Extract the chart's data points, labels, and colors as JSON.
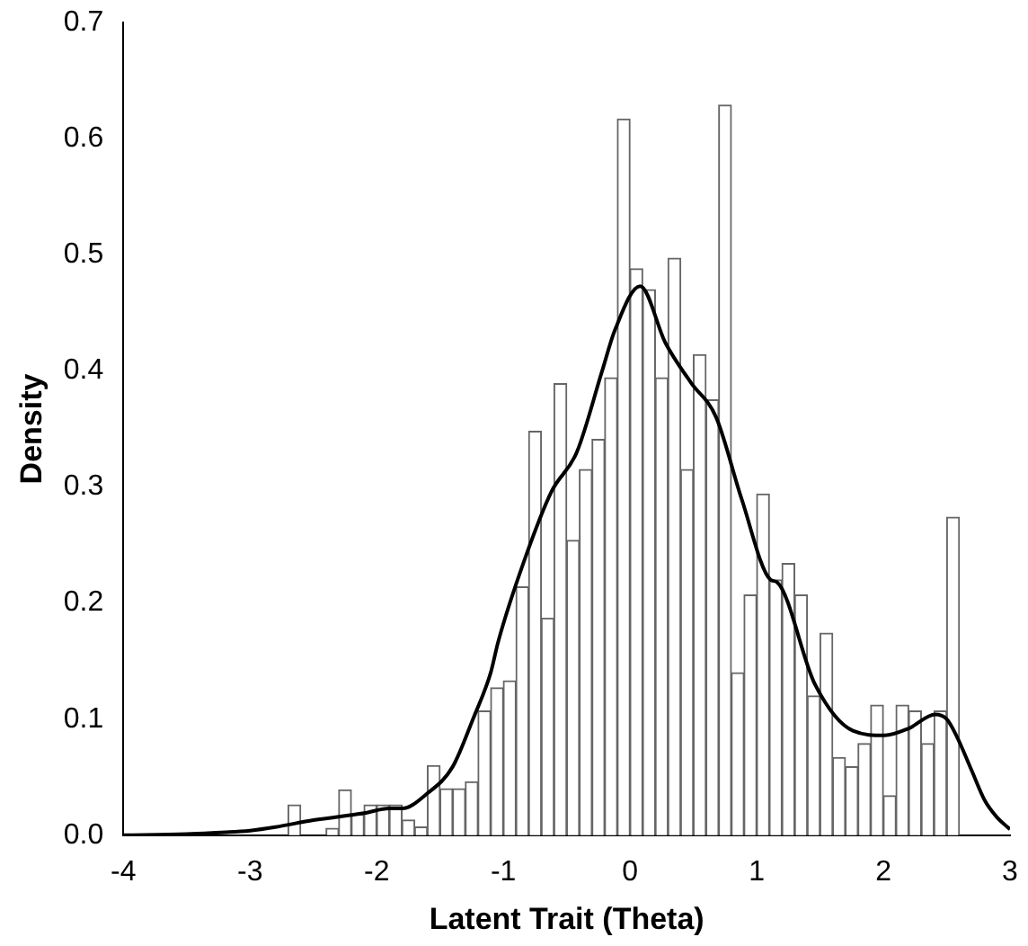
{
  "chart_data": {
    "type": "histogram",
    "xlabel": "Latent Trait (Theta)",
    "ylabel": "Density",
    "bins": [
      -2.7,
      -2.6,
      -2.5,
      -2.4,
      -2.3,
      -2.2,
      -2.1,
      -2.0,
      -1.9,
      -1.8,
      -1.7,
      -1.6,
      -1.5,
      -1.4,
      -1.3,
      -1.2,
      -1.1,
      -1.0,
      -0.9,
      -0.8,
      -0.7,
      -0.6,
      -0.5,
      -0.4,
      -0.3,
      -0.2,
      -0.1,
      0.0,
      0.1,
      0.2,
      0.3,
      0.4,
      0.5,
      0.6,
      0.7,
      0.8,
      0.9,
      1.0,
      1.1,
      1.2,
      1.3,
      1.4,
      1.5,
      1.6,
      1.7,
      1.8,
      1.9,
      2.0,
      2.1,
      2.2,
      2.3,
      2.4,
      2.5,
      2.6
    ],
    "values": [
      0.026,
      0,
      0,
      0.006,
      0.039,
      0.018,
      0.026,
      0.026,
      0.026,
      0.013,
      0.007,
      0.06,
      0.04,
      0.04,
      0.046,
      0.107,
      0.127,
      0.133,
      0.214,
      0.348,
      0.187,
      0.389,
      0.254,
      0.315,
      0.341,
      0.394,
      0.617,
      0.488,
      0.47,
      0.394,
      0.497,
      0.315,
      0.414,
      0.375,
      0.629,
      0.14,
      0.207,
      0.294,
      0.22,
      0.234,
      0.207,
      0.12,
      0.174,
      0.067,
      0.059,
      0.079,
      0.112,
      0.034,
      0.112,
      0.107,
      0.079,
      0.107,
      0.274
    ],
    "color": "#ffffff",
    "series": [
      {
        "type": "line",
        "color": "#000000",
        "x": [
          -4,
          -3.5,
          -3.3,
          -3.0,
          -2.8,
          -2.5,
          -2.1,
          -1.9,
          -1.8,
          -1.6,
          -1.4,
          -1.24,
          -1.1,
          -1.04,
          -0.84,
          -0.62,
          -0.42,
          -0.22,
          -0.12,
          0.08,
          0.28,
          0.48,
          0.68,
          0.88,
          1.11,
          1.16,
          1.46,
          1.76,
          2.01,
          2.2,
          2.41,
          2.5,
          2.58,
          2.7,
          2.8,
          2.9,
          2.98,
          3.0
        ],
        "values": [
          0,
          0.001,
          0.002,
          0.004,
          0.007,
          0.013,
          0.019,
          0.023,
          0.023,
          0.036,
          0.059,
          0.1,
          0.14,
          0.167,
          0.235,
          0.296,
          0.33,
          0.4,
          0.435,
          0.473,
          0.424,
          0.39,
          0.36,
          0.29,
          0.22,
          0.218,
          0.13,
          0.09,
          0.086,
          0.092,
          0.104,
          0.1,
          0.085,
          0.055,
          0.03,
          0.015,
          0.007,
          0.005
        ]
      }
    ],
    "xlim": [
      -4,
      3
    ],
    "xticks": [
      -4,
      -3,
      -2,
      -1,
      0,
      1,
      2,
      3
    ],
    "ylim": [
      0,
      0.7
    ],
    "yticks": [
      {
        "value": 0,
        "label": "0.0"
      },
      0.1,
      0.2,
      0.3,
      0.4,
      0.5,
      0.6,
      0.7
    ],
    "grid": false,
    "legend": false
  }
}
